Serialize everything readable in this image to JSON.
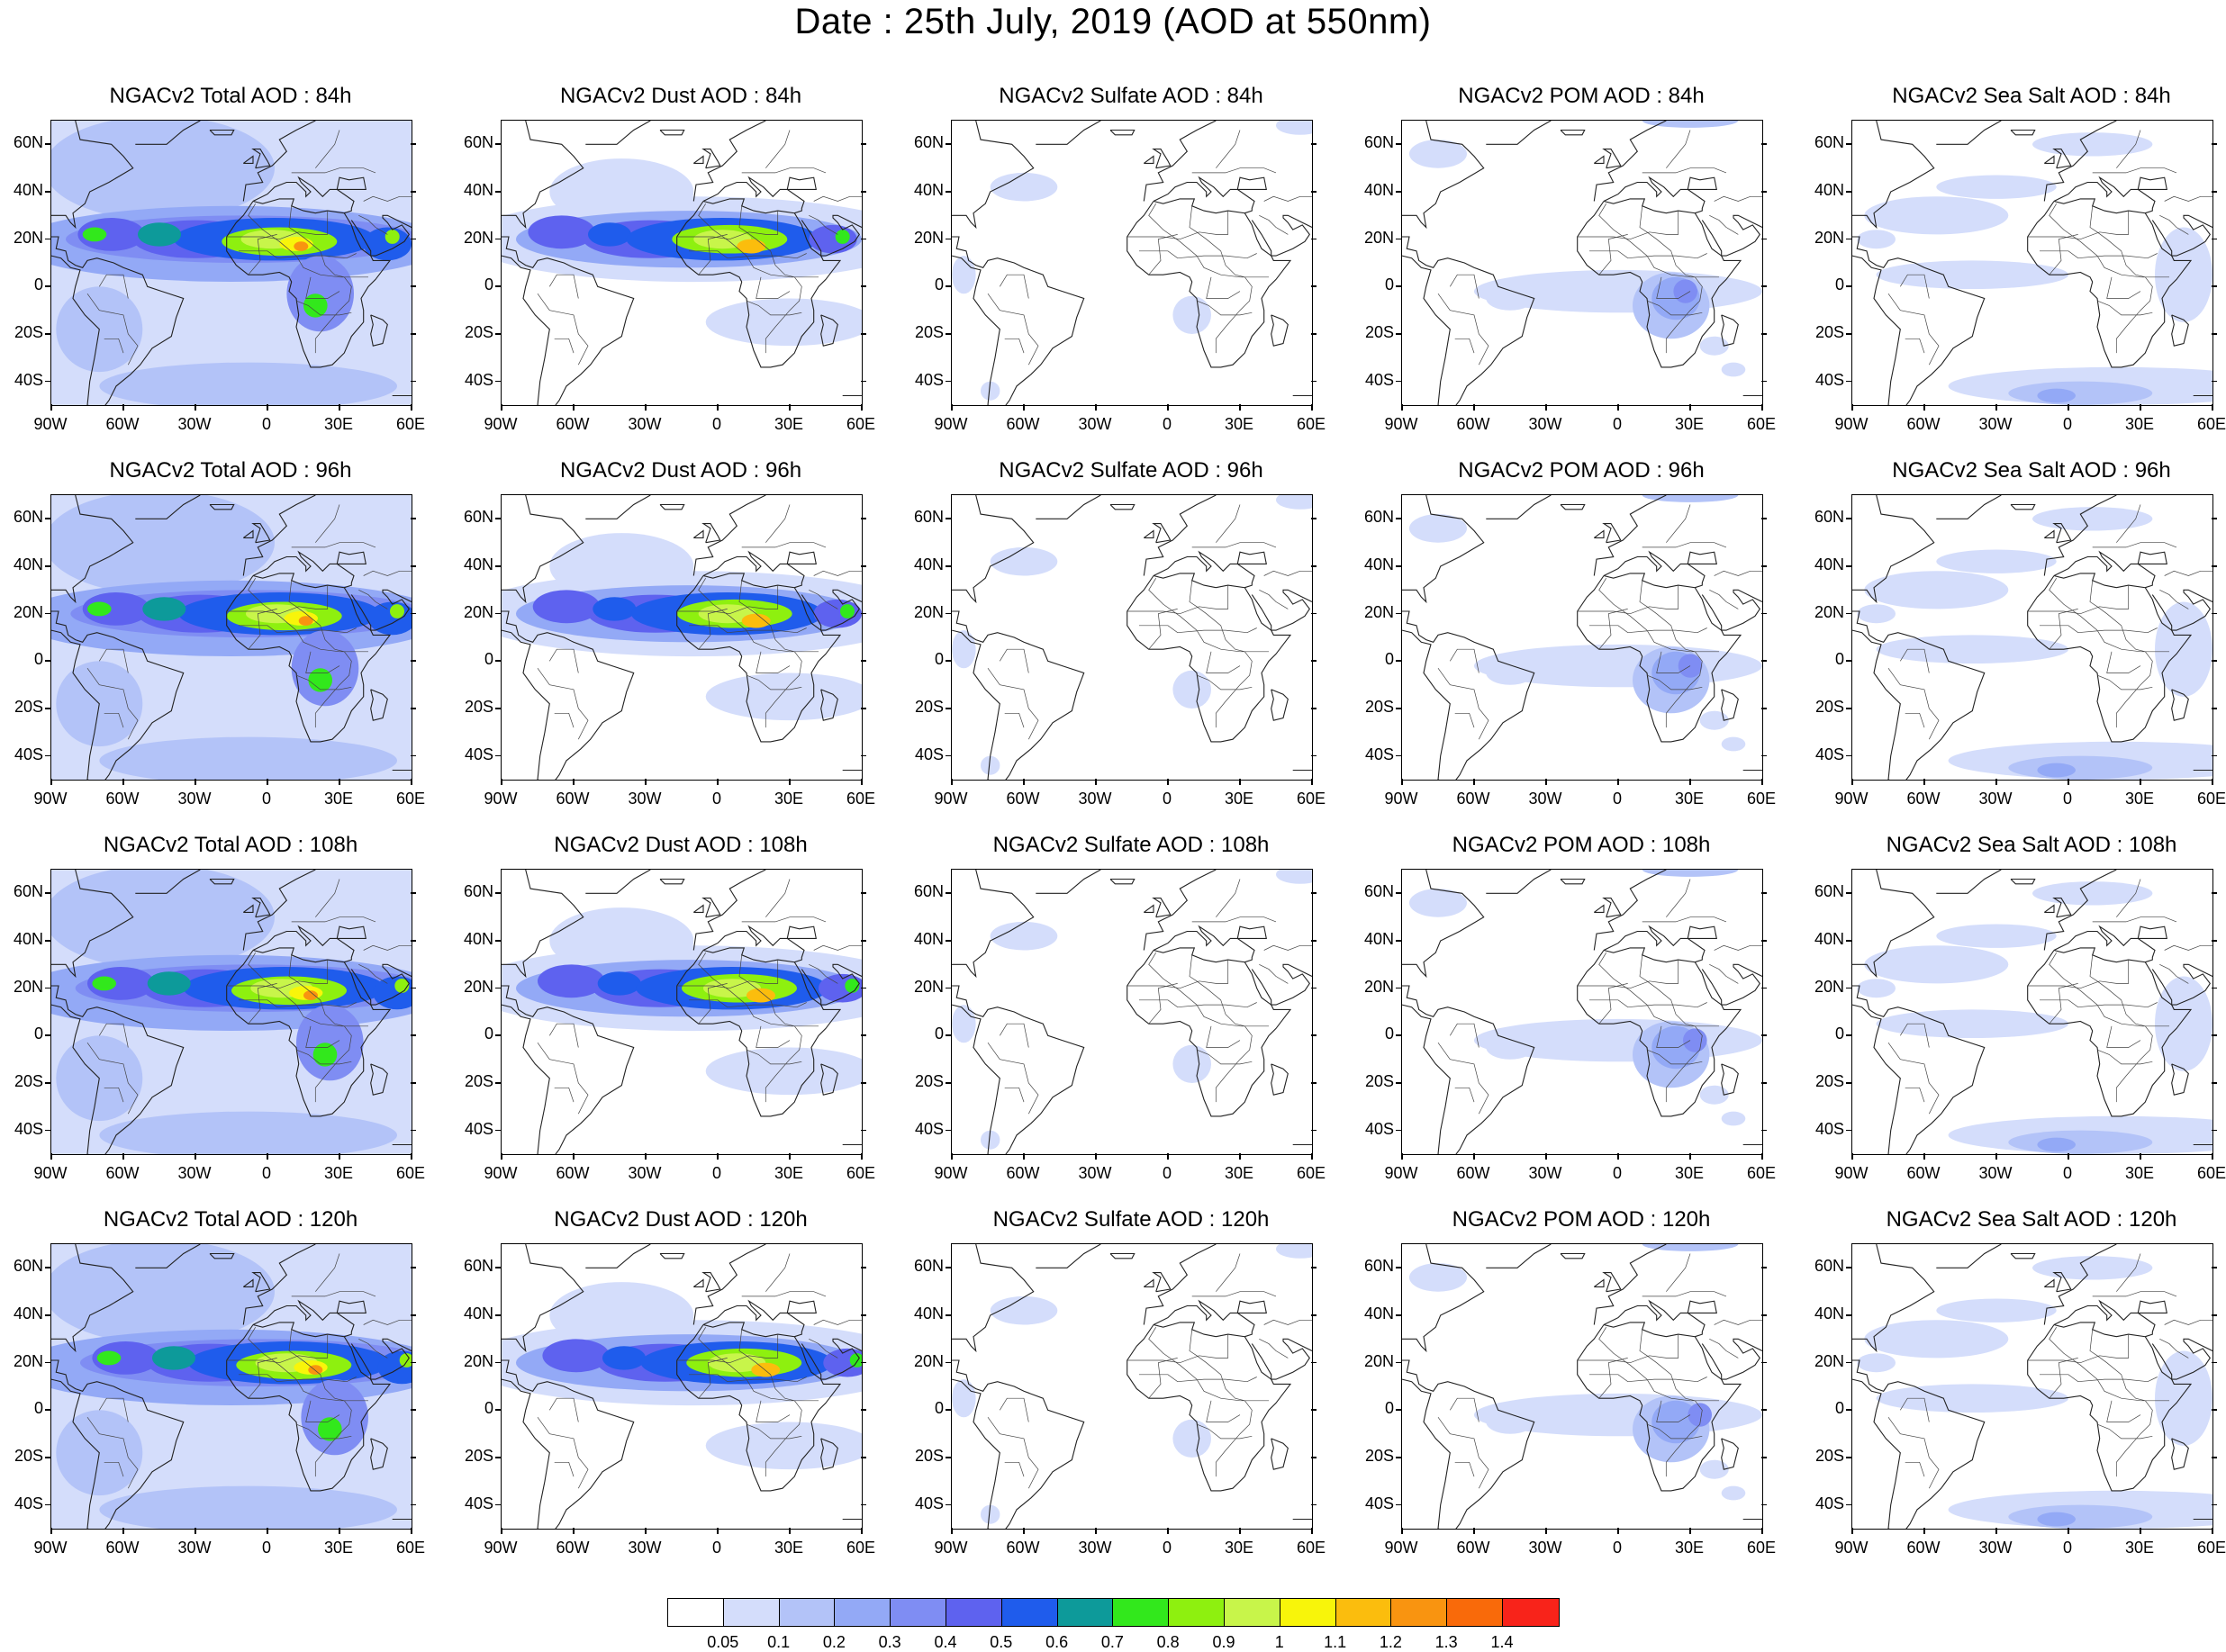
{
  "title": "Date : 25th July, 2019 (AOD at 550nm)",
  "lat_labels": [
    "60N",
    "40N",
    "20N",
    "0",
    "20S",
    "40S"
  ],
  "lon_labels": [
    "90W",
    "60W",
    "30W",
    "0",
    "30E",
    "60E"
  ],
  "rows": [
    [
      "NGACv2 Total AOD : 84h",
      "NGACv2 Dust AOD : 84h",
      "NGACv2 Sulfate AOD : 84h",
      "NGACv2 POM AOD : 84h",
      "NGACv2 Sea Salt AOD : 84h"
    ],
    [
      "NGACv2 Total AOD : 96h",
      "NGACv2 Dust AOD : 96h",
      "NGACv2 Sulfate AOD : 96h",
      "NGACv2 POM AOD : 96h",
      "NGACv2 Sea Salt AOD : 96h"
    ],
    [
      "NGACv2 Total AOD : 108h",
      "NGACv2 Dust AOD : 108h",
      "NGACv2 Sulfate AOD : 108h",
      "NGACv2 POM AOD : 108h",
      "NGACv2 Sea Salt AOD : 108h"
    ],
    [
      "NGACv2 Total AOD : 120h",
      "NGACv2 Dust AOD : 120h",
      "NGACv2 Sulfate AOD : 120h",
      "NGACv2 POM AOD : 120h",
      "NGACv2 Sea Salt  AOD : 120h"
    ]
  ],
  "colorbar": {
    "labels": [
      "0.05",
      "0.1",
      "0.2",
      "0.3",
      "0.4",
      "0.5",
      "0.6",
      "0.7",
      "0.8",
      "0.9",
      "1",
      "1.1",
      "1.2",
      "1.3",
      "1.4"
    ],
    "colors": [
      "#ffffff",
      "#d4ddfb",
      "#b3c3f8",
      "#93a9f6",
      "#7f8df3",
      "#5e62ef",
      "#1f5cec",
      "#0d9a9a",
      "#32e81c",
      "#8ef00f",
      "#c8f54a",
      "#f8f50a",
      "#fbbd0d",
      "#f99410",
      "#f96a0a",
      "#f8231a"
    ]
  }
}
